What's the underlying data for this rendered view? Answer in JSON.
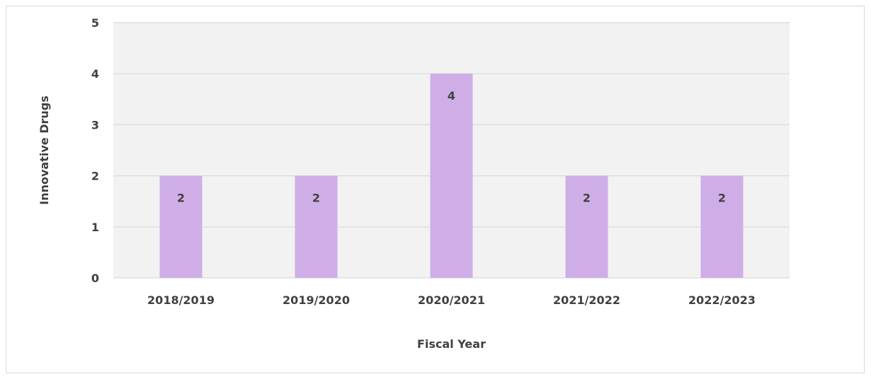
{
  "chart_data": {
    "type": "bar",
    "title": "",
    "xlabel": "Fiscal Year",
    "ylabel": "Innovative Drugs",
    "categories": [
      "2018/2019",
      "2019/2020",
      "2020/2021",
      "2021/2022",
      "2022/2023"
    ],
    "values": [
      2,
      2,
      4,
      2,
      2
    ],
    "ylim": [
      0,
      5
    ],
    "yticks": [
      0,
      1,
      2,
      3,
      4,
      5
    ],
    "grid": true,
    "legend": "none",
    "data_labels": true,
    "colors": {
      "bar": "#cfaee8",
      "plot_background": "#f2f2f2",
      "gridline": "#d9d9d9",
      "text": "#404040"
    }
  }
}
